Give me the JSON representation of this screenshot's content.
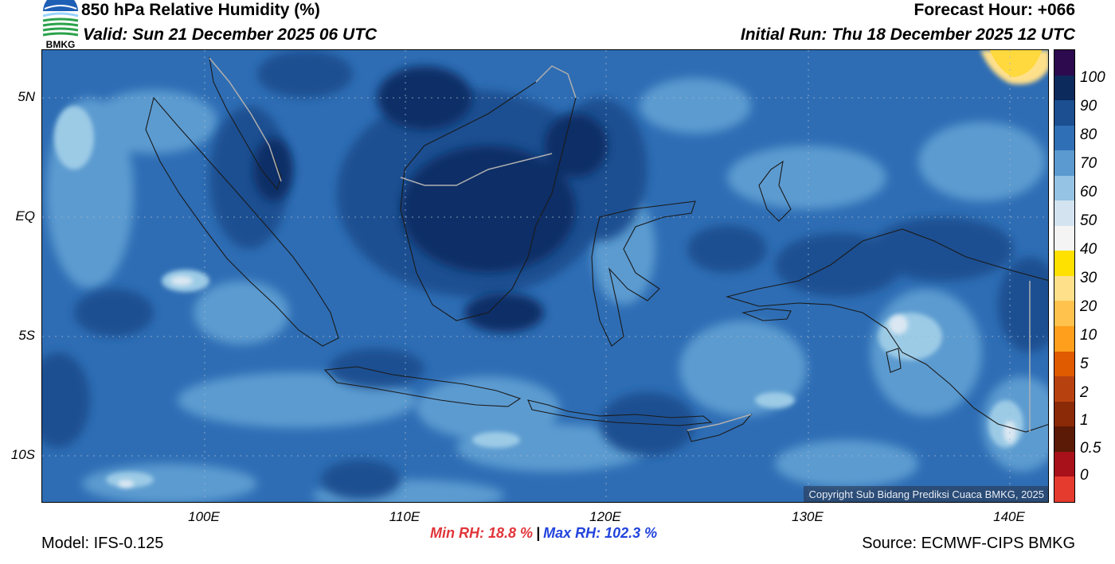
{
  "header": {
    "title": "850 hPa Relative Humidity (%)",
    "valid": "Valid: Sun 21 December 2025 06 UTC",
    "forecast_hour": "Forecast Hour: +066",
    "initial_run": "Initial Run: Thu 18 December 2025 12 UTC",
    "logo_text": "BMKG"
  },
  "map": {
    "lat_labels": [
      "5N",
      "EQ",
      "5S",
      "10S"
    ],
    "lon_labels": [
      "100E",
      "110E",
      "120E",
      "130E",
      "140E"
    ],
    "copyright": "Copyright Sub Bidang Prediksi Cuaca BMKG, 2025",
    "colors": {
      "ocean_base": "#2e6db4",
      "moist": "#1b4f91",
      "very_moist": "#0f2f66",
      "medium": "#5c9bd0",
      "light": "#9ccbe6",
      "dry": "#dbe8f3",
      "yellow": "#ffd93d",
      "coast": "#1a1a1a",
      "border": "#b0b0b0"
    }
  },
  "colorbar": {
    "labels": [
      "100",
      "90",
      "80",
      "70",
      "60",
      "50",
      "40",
      "30",
      "20",
      "10",
      "5",
      "2",
      "1",
      "0.5",
      "0"
    ],
    "colors": [
      "#2c0a4d",
      "#0d2a5c",
      "#1b4f91",
      "#2f6fb5",
      "#5b9ad0",
      "#95c3e3",
      "#d3e4f0",
      "#f4f4f4",
      "#ffe100",
      "#ffe08a",
      "#ffc34d",
      "#ff9f1c",
      "#e05a00",
      "#b8420f",
      "#8b2a06",
      "#5a1a05",
      "#a8101a",
      "#e53b2e"
    ]
  },
  "footer": {
    "model": "Model: IFS-0.125",
    "source": "Source: ECMWF-CIPS BMKG",
    "min_rh": "Min RH:  18.8 %",
    "separator": "|",
    "max_rh": "Max RH: 102.3 %"
  }
}
